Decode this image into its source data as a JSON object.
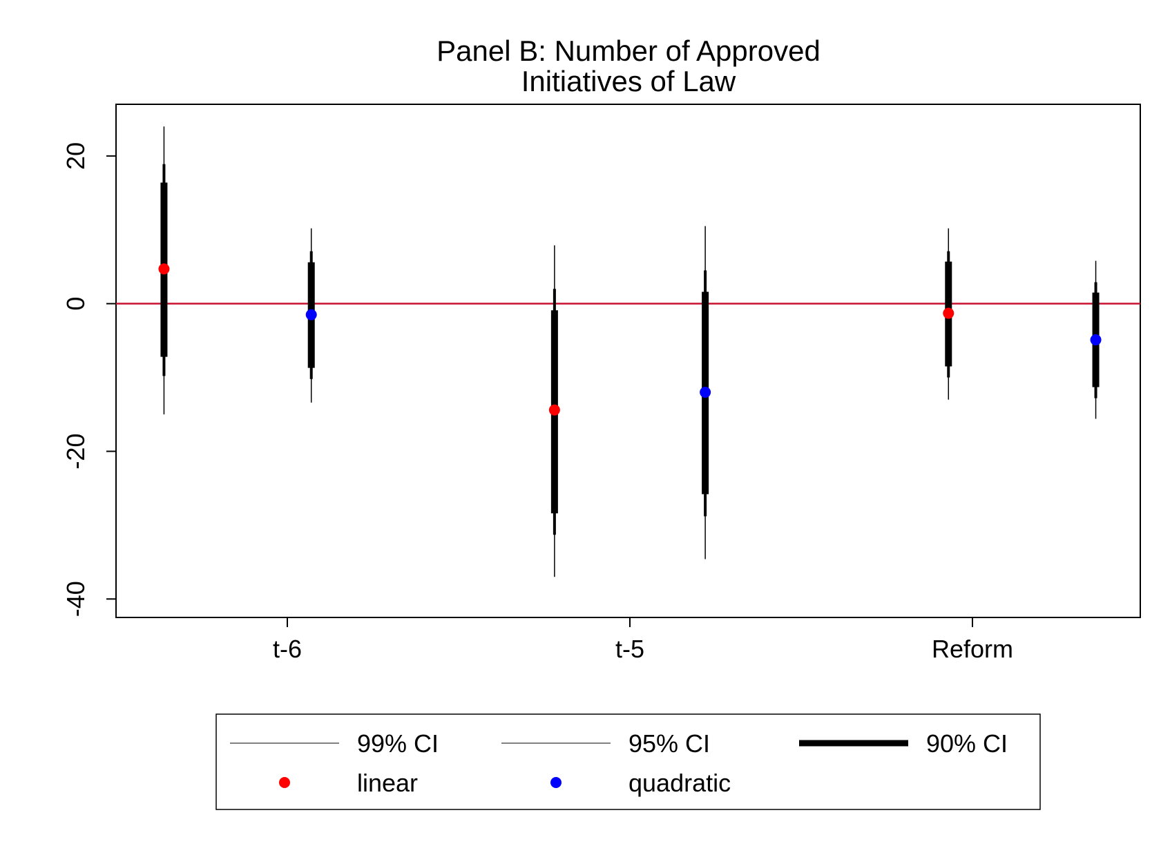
{
  "chart_data": {
    "type": "scatter",
    "title": [
      "Panel B: Number of Approved",
      "Initiatives of Law"
    ],
    "xlabel": "",
    "ylabel": "",
    "categories": [
      "t-6",
      "t-5",
      "Reform"
    ],
    "ylim": [
      -42.5,
      27
    ],
    "yticks": [
      20,
      0,
      -20,
      -40
    ],
    "reference_line": {
      "y": 0,
      "color": "#c8102e"
    },
    "grid": false,
    "legend": {
      "placement": "bottom",
      "entries": [
        "99% CI",
        "95% CI",
        "90% CI",
        "linear",
        "quadratic"
      ]
    },
    "series": [
      {
        "name": "linear",
        "color": "#ff0000",
        "points": [
          {
            "category": "t-6",
            "offset": -0.36,
            "estimate": 4.7,
            "ci90": [
              -7.2,
              16.4
            ],
            "ci95": [
              -9.8,
              18.9
            ],
            "ci99": [
              -15.0,
              24.0
            ]
          },
          {
            "category": "t-5",
            "offset": -0.22,
            "estimate": -14.4,
            "ci90": [
              -28.4,
              -0.9
            ],
            "ci95": [
              -31.3,
              2.0
            ],
            "ci99": [
              -37.0,
              7.9
            ]
          },
          {
            "category": "Reform",
            "offset": -0.07,
            "estimate": -1.3,
            "ci90": [
              -8.5,
              5.7
            ],
            "ci95": [
              -10.0,
              7.1
            ],
            "ci99": [
              -13.0,
              10.2
            ]
          }
        ]
      },
      {
        "name": "quadratic",
        "color": "#0000ff",
        "points": [
          {
            "category": "t-6",
            "offset": 0.07,
            "estimate": -1.5,
            "ci90": [
              -8.7,
              5.6
            ],
            "ci95": [
              -10.2,
              7.1
            ],
            "ci99": [
              -13.4,
              10.2
            ]
          },
          {
            "category": "t-5",
            "offset": 0.22,
            "estimate": -12.0,
            "ci90": [
              -25.8,
              1.6
            ],
            "ci95": [
              -28.8,
              4.5
            ],
            "ci99": [
              -34.6,
              10.5
            ]
          },
          {
            "category": "Reform",
            "offset": 0.36,
            "estimate": -4.9,
            "ci90": [
              -11.3,
              1.5
            ],
            "ci95": [
              -12.8,
              2.9
            ],
            "ci99": [
              -15.6,
              5.8
            ]
          }
        ]
      }
    ]
  }
}
